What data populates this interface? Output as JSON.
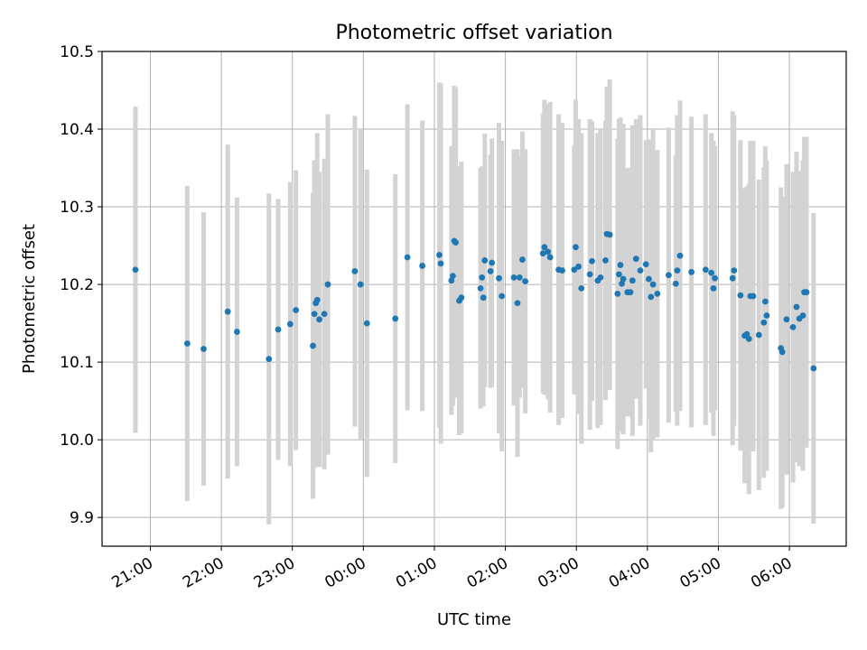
{
  "chart_data": {
    "type": "scatter",
    "title": "Photometric offset variation",
    "xlabel": "UTC time",
    "ylabel": "Photometric offset",
    "x_unit": "hours past 21:00 UTC (axis labels show clock time)",
    "xlim": [
      -0.68,
      9.8
    ],
    "ylim": [
      9.863,
      10.5
    ],
    "xticks": [
      0,
      1,
      2,
      3,
      4,
      5,
      6,
      7,
      8,
      9
    ],
    "xtick_labels": [
      "21:00",
      "22:00",
      "23:00",
      "00:00",
      "01:00",
      "02:00",
      "03:00",
      "04:00",
      "05:00",
      "06:00"
    ],
    "yticks": [
      9.9,
      10.0,
      10.1,
      10.2,
      10.3,
      10.4,
      10.5
    ],
    "ytick_labels": [
      "9.9",
      "10.0",
      "10.1",
      "10.2",
      "10.3",
      "10.4",
      "10.5"
    ],
    "grid": true,
    "colors": {
      "points": "#1f77b4",
      "errorbars": "#d3d3d3",
      "grid": "#b0b0b0"
    },
    "points": [
      [
        -0.21,
        10.219,
        0.21
      ],
      [
        0.52,
        10.124,
        0.203
      ],
      [
        0.75,
        10.117,
        0.176
      ],
      [
        1.09,
        10.165,
        0.215
      ],
      [
        1.22,
        10.139,
        0.173
      ],
      [
        1.67,
        10.104,
        0.213
      ],
      [
        1.8,
        10.142,
        0.168
      ],
      [
        1.97,
        10.149,
        0.183
      ],
      [
        2.05,
        10.167,
        0.18
      ],
      [
        2.29,
        10.121,
        0.197
      ],
      [
        2.31,
        10.162,
        0.198
      ],
      [
        2.33,
        10.176,
        0.13
      ],
      [
        2.35,
        10.18,
        0.215
      ],
      [
        2.38,
        10.155,
        0.19
      ],
      [
        2.45,
        10.162,
        0.2
      ],
      [
        2.5,
        10.2,
        0.219
      ],
      [
        2.88,
        10.217,
        0.2
      ],
      [
        2.96,
        10.2,
        0.2
      ],
      [
        3.05,
        10.15,
        0.198
      ],
      [
        3.45,
        10.156,
        0.186
      ],
      [
        3.62,
        10.235,
        0.197
      ],
      [
        3.83,
        10.224,
        0.187
      ],
      [
        4.07,
        10.238,
        0.222
      ],
      [
        4.09,
        10.227,
        0.232
      ],
      [
        4.24,
        10.205,
        0.173
      ],
      [
        4.26,
        10.211,
        0.167
      ],
      [
        4.28,
        10.256,
        0.2
      ],
      [
        4.3,
        10.254,
        0.2
      ],
      [
        4.35,
        10.179,
        0.173
      ],
      [
        4.38,
        10.183,
        0.175
      ],
      [
        4.65,
        10.195,
        0.155
      ],
      [
        4.67,
        10.209,
        0.143
      ],
      [
        4.69,
        10.183,
        0.14
      ],
      [
        4.71,
        10.231,
        0.163
      ],
      [
        4.79,
        10.217,
        0.15
      ],
      [
        4.81,
        10.228,
        0.16
      ],
      [
        4.91,
        10.208,
        0.2
      ],
      [
        4.95,
        10.185,
        0.2
      ],
      [
        5.12,
        10.209,
        0.165
      ],
      [
        5.17,
        10.176,
        0.198
      ],
      [
        5.2,
        10.209,
        0.155
      ],
      [
        5.24,
        10.232,
        0.165
      ],
      [
        5.28,
        10.204,
        0.17
      ],
      [
        5.53,
        10.24,
        0.18
      ],
      [
        5.55,
        10.248,
        0.19
      ],
      [
        5.6,
        10.242,
        0.19
      ],
      [
        5.63,
        10.235,
        0.2
      ],
      [
        5.75,
        10.219,
        0.2
      ],
      [
        5.8,
        10.218,
        0.19
      ],
      [
        5.97,
        10.219,
        0.16
      ],
      [
        5.99,
        10.248,
        0.19
      ],
      [
        6.03,
        10.223,
        0.19
      ],
      [
        6.07,
        10.195,
        0.2
      ],
      [
        6.19,
        10.213,
        0.2
      ],
      [
        6.22,
        10.23,
        0.18
      ],
      [
        6.3,
        10.205,
        0.19
      ],
      [
        6.34,
        10.209,
        0.19
      ],
      [
        6.41,
        10.231,
        0.18
      ],
      [
        6.43,
        10.265,
        0.19
      ],
      [
        6.47,
        10.264,
        0.2
      ],
      [
        6.58,
        10.188,
        0.2
      ],
      [
        6.6,
        10.213,
        0.2
      ],
      [
        6.62,
        10.225,
        0.19
      ],
      [
        6.64,
        10.201,
        0.19
      ],
      [
        6.66,
        10.207,
        0.2
      ],
      [
        6.72,
        10.19,
        0.16
      ],
      [
        6.76,
        10.19,
        0.16
      ],
      [
        6.79,
        10.205,
        0.2
      ],
      [
        6.84,
        10.233,
        0.18
      ],
      [
        6.9,
        10.218,
        0.2
      ],
      [
        6.98,
        10.226,
        0.16
      ],
      [
        7.02,
        10.207,
        0.18
      ],
      [
        7.05,
        10.184,
        0.2
      ],
      [
        7.08,
        10.2,
        0.2
      ],
      [
        7.14,
        10.188,
        0.185
      ],
      [
        7.3,
        10.212,
        0.19
      ],
      [
        7.4,
        10.201,
        0.165
      ],
      [
        7.42,
        10.218,
        0.2
      ],
      [
        7.46,
        10.237,
        0.2
      ],
      [
        7.62,
        10.216,
        0.2
      ],
      [
        7.82,
        10.219,
        0.2
      ],
      [
        7.9,
        10.215,
        0.18
      ],
      [
        7.93,
        10.195,
        0.19
      ],
      [
        7.95,
        10.208,
        0.17
      ],
      [
        8.2,
        10.208,
        0.215
      ],
      [
        8.22,
        10.218,
        0.2
      ],
      [
        8.31,
        10.186,
        0.2
      ],
      [
        8.37,
        10.134,
        0.19
      ],
      [
        8.4,
        10.136,
        0.19
      ],
      [
        8.43,
        10.13,
        0.2
      ],
      [
        8.45,
        10.185,
        0.2
      ],
      [
        8.49,
        10.185,
        0.2
      ],
      [
        8.57,
        10.135,
        0.2
      ],
      [
        8.64,
        10.151,
        0.2
      ],
      [
        8.66,
        10.178,
        0.2
      ],
      [
        8.68,
        10.16,
        0.2
      ],
      [
        8.88,
        10.118,
        0.207
      ],
      [
        8.9,
        10.113,
        0.2
      ],
      [
        8.96,
        10.155,
        0.2
      ],
      [
        9.05,
        10.145,
        0.2
      ],
      [
        9.1,
        10.171,
        0.2
      ],
      [
        9.14,
        10.156,
        0.19
      ],
      [
        9.19,
        10.16,
        0.2
      ],
      [
        9.21,
        10.19,
        0.2
      ],
      [
        9.24,
        10.19,
        0.2
      ],
      [
        9.34,
        10.092,
        0.2
      ]
    ]
  }
}
